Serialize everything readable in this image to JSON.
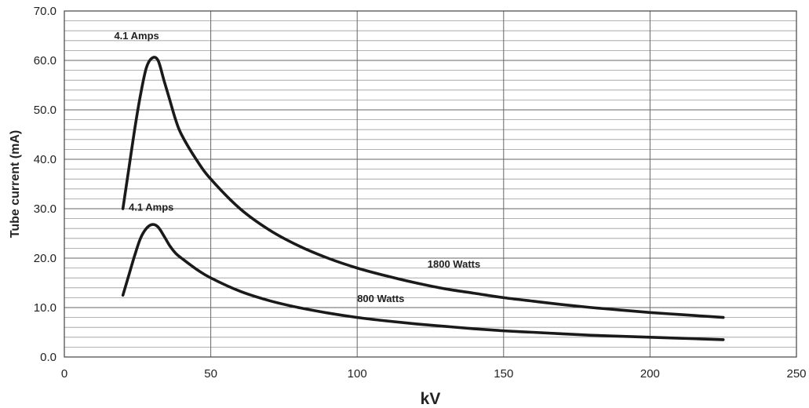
{
  "chart_data": {
    "type": "line",
    "xlabel": "kV",
    "ylabel": "Tube current (mA)",
    "xlim": [
      0,
      250
    ],
    "ylim": [
      0,
      70
    ],
    "x_ticks": [
      0,
      50,
      100,
      150,
      200,
      250
    ],
    "x_tick_labels": [
      "0",
      "50",
      "100",
      "150",
      "200",
      "250"
    ],
    "y_ticks": [
      0,
      10,
      20,
      30,
      40,
      50,
      60,
      70
    ],
    "y_tick_labels": [
      "0.0",
      "10.0",
      "20.0",
      "30.0",
      "40.0",
      "50.0",
      "60.0",
      "70.0"
    ],
    "y_minor_step": 2,
    "grid": true,
    "series": [
      {
        "name": "1800 Watts",
        "color": "#1a1a1a",
        "x": [
          20,
          22,
          24,
          26,
          28,
          30,
          32,
          34,
          36,
          38,
          40,
          45,
          50,
          60,
          70,
          80,
          90,
          100,
          110,
          120,
          130,
          140,
          150,
          160,
          170,
          180,
          190,
          200,
          210,
          220,
          225
        ],
        "y": [
          30,
          38,
          46,
          53,
          58.5,
          60.5,
          60,
          56,
          52,
          48,
          45,
          40,
          36,
          30,
          25.7,
          22.5,
          20,
          18,
          16.4,
          15,
          13.8,
          12.9,
          12,
          11.3,
          10.6,
          10,
          9.5,
          9,
          8.6,
          8.2,
          8
        ]
      },
      {
        "name": "800 Watts",
        "color": "#1a1a1a",
        "x": [
          20,
          22,
          24,
          26,
          28,
          30,
          32,
          34,
          36,
          38,
          40,
          45,
          50,
          60,
          70,
          80,
          90,
          100,
          110,
          120,
          130,
          140,
          150,
          160,
          170,
          180,
          190,
          200,
          210,
          220,
          225
        ],
        "y": [
          12.5,
          16.5,
          20.5,
          24,
          26,
          26.8,
          26.3,
          24.5,
          22.5,
          21,
          20,
          17.8,
          16,
          13.3,
          11.4,
          10,
          8.9,
          8,
          7.3,
          6.7,
          6.2,
          5.7,
          5.3,
          5,
          4.7,
          4.4,
          4.2,
          4,
          3.8,
          3.6,
          3.5
        ]
      }
    ],
    "annotations": [
      {
        "text": "4.1 Amps",
        "x": 17,
        "y": 64.3
      },
      {
        "text": "4.1 Amps",
        "x": 22,
        "y": 29.6
      },
      {
        "text": "1800 Watts",
        "x": 124,
        "y": 18.1
      },
      {
        "text": "800 Watts",
        "x": 100,
        "y": 11.1
      }
    ]
  }
}
